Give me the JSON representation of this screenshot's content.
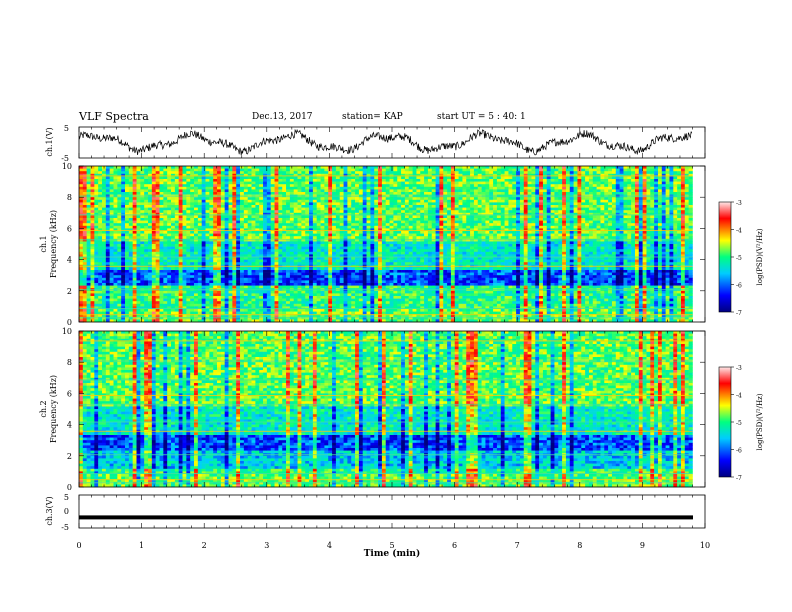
{
  "header": {
    "title": "VLF Spectra",
    "date": "Dec.13, 2017",
    "station": "station= KAP",
    "start": "start UT =  5 : 40: 1"
  },
  "chart_data": [
    {
      "type": "line",
      "panel": "ch1-waveform",
      "ylabel": "ch.1(V)",
      "ylim": [
        -5,
        5
      ],
      "yticks": [
        "5",
        "-5"
      ],
      "xlim": [
        0,
        10
      ],
      "description_values": "noisy waveform around 0 V, amplitude about ±4 V, from 0 to ~9.8 min"
    },
    {
      "type": "heatmap",
      "panel": "ch1-spectrogram",
      "ylabel": "ch.1\nFrequency (kHz)",
      "ylim": [
        0,
        10
      ],
      "yticks": [
        "0",
        "2",
        "4",
        "6",
        "8",
        "10"
      ],
      "xlim": [
        0,
        10
      ],
      "colorbar": {
        "label": "log(PSD)(V²/Hz)",
        "range": [
          -7,
          -3
        ],
        "ticks": [
          "-3",
          "-4",
          "-5",
          "-6",
          "-7"
        ]
      }
    },
    {
      "type": "heatmap",
      "panel": "ch2-spectrogram",
      "ylabel": "ch.2\nFrequency (kHz)",
      "ylim": [
        0,
        10
      ],
      "yticks": [
        "0",
        "2",
        "4",
        "6",
        "8",
        "10"
      ],
      "xlim": [
        0,
        10
      ],
      "colorbar": {
        "label": "log(PSD)(V²/Hz)",
        "range": [
          -7,
          -3
        ],
        "ticks": [
          "-3",
          "-4",
          "-5",
          "-6",
          "-7"
        ]
      }
    },
    {
      "type": "line",
      "panel": "ch3-waveform",
      "ylabel": "ch.3(V)",
      "ylim": [
        -5,
        5
      ],
      "yticks": [
        "5",
        "0",
        "-5"
      ],
      "xlim": [
        0,
        10
      ],
      "constant_value": -1.8
    }
  ],
  "xaxis": {
    "label": "Time (min)",
    "ticks": [
      "0",
      "1",
      "2",
      "3",
      "4",
      "5",
      "6",
      "7",
      "8",
      "9",
      "10"
    ]
  },
  "colors": {
    "scale": [
      "#000080",
      "#0000ff",
      "#00ccff",
      "#00ff80",
      "#ffff00",
      "#ff0000",
      "#ffe8e8"
    ]
  }
}
